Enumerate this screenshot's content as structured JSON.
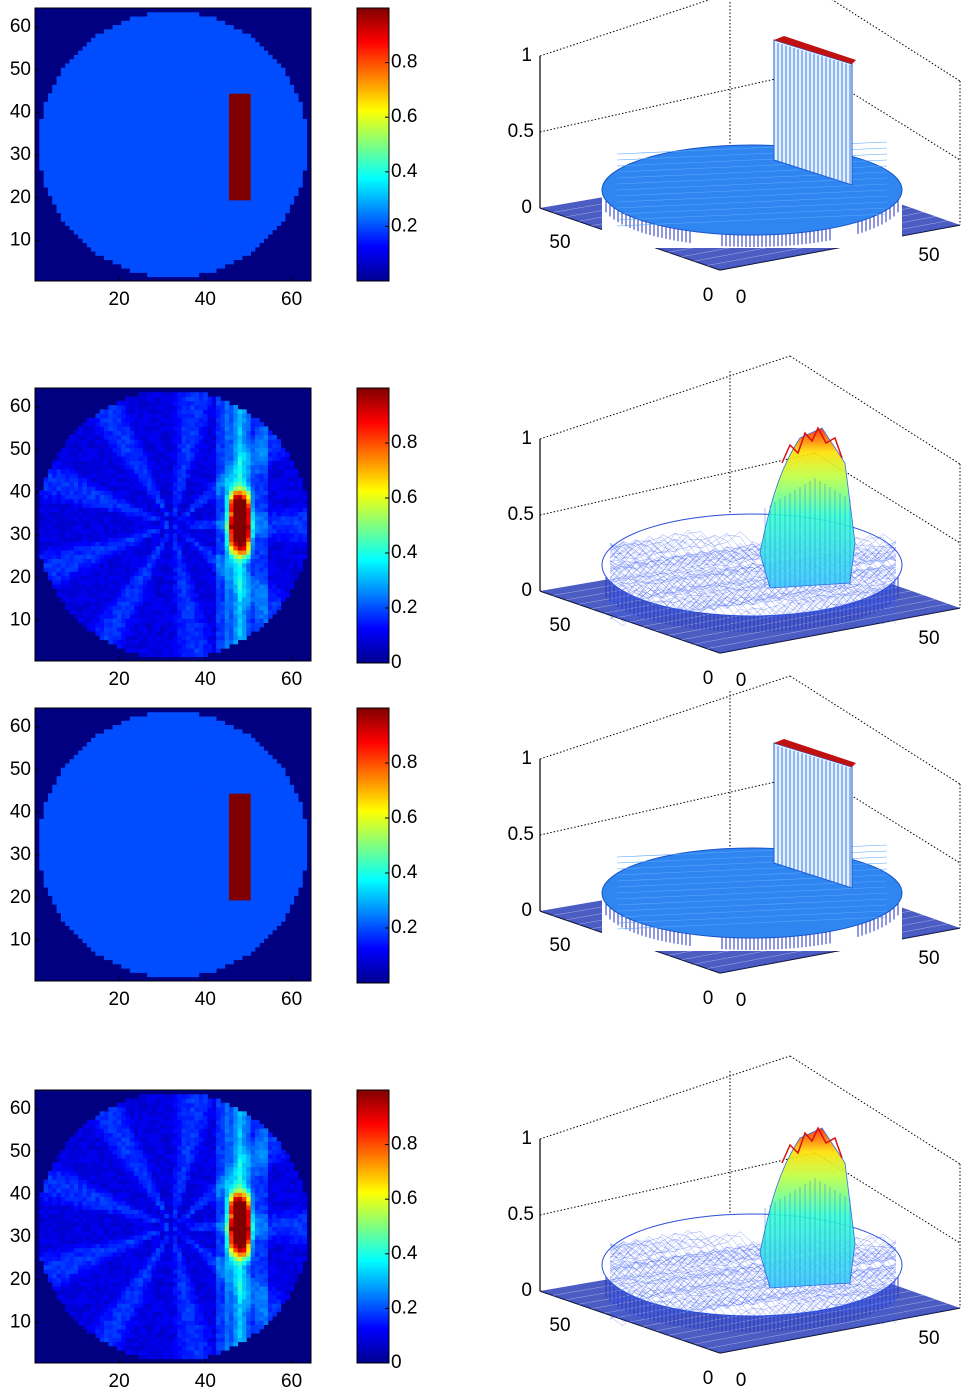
{
  "colorbar_stops": [
    "#00008f",
    "#0000ff",
    "#0080ff",
    "#00ffff",
    "#80ff80",
    "#ffff00",
    "#ff8000",
    "#ff0000",
    "#800000"
  ],
  "chart_data": [
    {
      "id": "row1",
      "type": "heatmap",
      "variant": "phantom",
      "x_ticks": [
        "20",
        "40",
        "60"
      ],
      "y_ticks": [
        "10",
        "20",
        "30",
        "40",
        "50",
        "60"
      ],
      "xlim": [
        1,
        64
      ],
      "ylim": [
        1,
        64
      ],
      "background_value": 0.0,
      "disk_value": 0.2,
      "inclusion_value": 1.0,
      "disk_center": [
        32.5,
        32.5
      ],
      "disk_radius": 31,
      "inclusion_x": [
        46,
        50
      ],
      "inclusion_y": [
        20,
        44
      ],
      "colorbar_ticks": [
        "0.2",
        "0.4",
        "0.6",
        "0.8"
      ],
      "colorbar_values": [
        0.2,
        0.4,
        0.6,
        0.8
      ],
      "clim": [
        0,
        1
      ],
      "surface": {
        "type": "surface3d",
        "z_ticks": [
          "0",
          "0.5",
          "1"
        ],
        "x_ticks": [
          "0",
          "50"
        ],
        "y_ticks": [
          "0",
          "50"
        ],
        "zlim": [
          0,
          1
        ]
      }
    },
    {
      "id": "row2",
      "type": "heatmap",
      "variant": "reconstruction",
      "x_ticks": [
        "20",
        "40",
        "60"
      ],
      "y_ticks": [
        "10",
        "20",
        "30",
        "40",
        "50",
        "60"
      ],
      "xlim": [
        1,
        64
      ],
      "ylim": [
        1,
        64
      ],
      "peak_value": 0.95,
      "peak_center": [
        48,
        33
      ],
      "colorbar_ticks": [
        "0",
        "0.2",
        "0.4",
        "0.6",
        "0.8"
      ],
      "colorbar_values": [
        0,
        0.2,
        0.4,
        0.6,
        0.8
      ],
      "clim": [
        0,
        1
      ],
      "surface": {
        "type": "surface3d",
        "z_ticks": [
          "0",
          "0.5",
          "1"
        ],
        "x_ticks": [
          "0",
          "50"
        ],
        "y_ticks": [
          "0",
          "50"
        ],
        "zlim": [
          0,
          1
        ]
      }
    },
    {
      "id": "row3",
      "type": "heatmap",
      "variant": "phantom",
      "x_ticks": [
        "20",
        "40",
        "60"
      ],
      "y_ticks": [
        "10",
        "20",
        "30",
        "40",
        "50",
        "60"
      ],
      "xlim": [
        1,
        64
      ],
      "ylim": [
        1,
        64
      ],
      "background_value": 0.0,
      "disk_value": 0.2,
      "inclusion_value": 1.0,
      "disk_center": [
        32.5,
        32.5
      ],
      "disk_radius": 31,
      "inclusion_x": [
        46,
        50
      ],
      "inclusion_y": [
        20,
        44
      ],
      "colorbar_ticks": [
        "0.2",
        "0.4",
        "0.6",
        "0.8"
      ],
      "colorbar_values": [
        0.2,
        0.4,
        0.6,
        0.8
      ],
      "clim": [
        0,
        1
      ],
      "surface": {
        "type": "surface3d",
        "z_ticks": [
          "0",
          "0.5",
          "1"
        ],
        "x_ticks": [
          "0",
          "50"
        ],
        "y_ticks": [
          "0",
          "50"
        ],
        "zlim": [
          0,
          1
        ]
      }
    },
    {
      "id": "row4",
      "type": "heatmap",
      "variant": "reconstruction",
      "x_ticks": [
        "20",
        "40",
        "60"
      ],
      "y_ticks": [
        "10",
        "20",
        "30",
        "40",
        "50",
        "60"
      ],
      "xlim": [
        1,
        64
      ],
      "ylim": [
        1,
        64
      ],
      "peak_value": 0.95,
      "peak_center": [
        48,
        33
      ],
      "colorbar_ticks": [
        "0",
        "0.2",
        "0.4",
        "0.6",
        "0.8"
      ],
      "colorbar_values": [
        0,
        0.2,
        0.4,
        0.6,
        0.8
      ],
      "clim": [
        0,
        1
      ],
      "surface": {
        "type": "surface3d",
        "z_ticks": [
          "0",
          "0.5",
          "1"
        ],
        "x_ticks": [
          "0",
          "50"
        ],
        "y_ticks": [
          "0",
          "50"
        ],
        "zlim": [
          0,
          1
        ]
      }
    }
  ]
}
